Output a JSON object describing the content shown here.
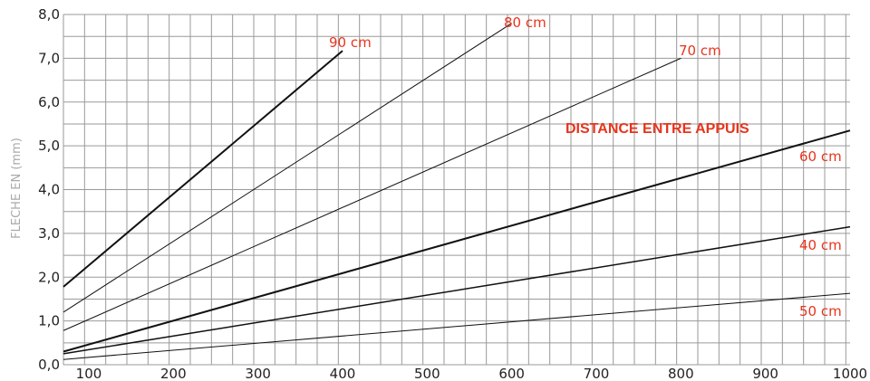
{
  "chart_data": {
    "type": "line",
    "ylabel": "FLECHE EN (mm)",
    "xlabel": "",
    "xlim": [
      70,
      1000
    ],
    "ylim": [
      0,
      8
    ],
    "x_ticks": [
      100,
      200,
      300,
      400,
      500,
      600,
      700,
      800,
      900,
      1000
    ],
    "y_ticks": [
      "0,0",
      "1,0",
      "2,0",
      "3,0",
      "4,0",
      "5,0",
      "6,0",
      "7,0",
      "8,0"
    ],
    "grid": true,
    "annotation": "DISTANCE ENTRE APPUIS",
    "label_color": "#e8341c",
    "series": [
      {
        "name": "90 cm",
        "x": [
          70,
          400
        ],
        "y": [
          1.78,
          7.17
        ],
        "line_width": 2
      },
      {
        "name": "80 cm",
        "x": [
          70,
          600
        ],
        "y": [
          1.2,
          7.8
        ],
        "line_width": 1
      },
      {
        "name": "70 cm",
        "x": [
          70,
          800
        ],
        "y": [
          0.78,
          7.0
        ],
        "line_width": 1
      },
      {
        "name": "60 cm",
        "x": [
          70,
          1000
        ],
        "y": [
          0.3,
          5.35
        ],
        "line_width": 2
      },
      {
        "name": "40 cm",
        "x": [
          70,
          1000
        ],
        "y": [
          0.25,
          3.15
        ],
        "line_width": 1.5
      },
      {
        "name": "50 cm",
        "x": [
          70,
          1000
        ],
        "y": [
          0.12,
          1.63
        ],
        "line_width": 1
      }
    ]
  }
}
